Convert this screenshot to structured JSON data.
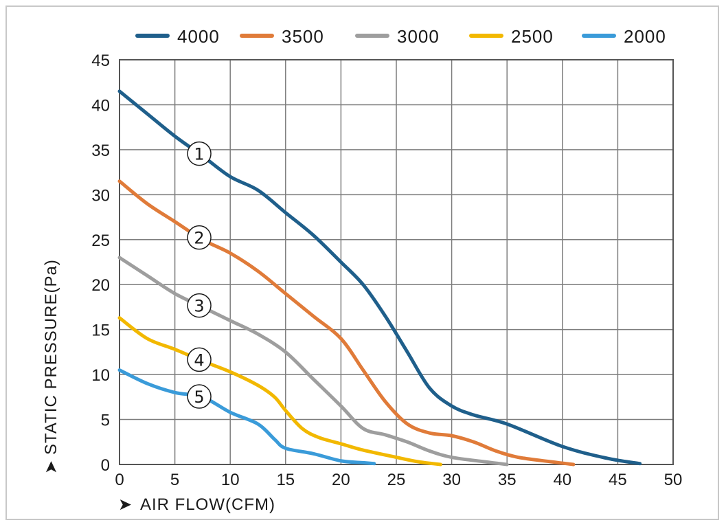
{
  "chart_data": {
    "type": "line",
    "xlabel": "AIR FLOW(CFM)",
    "ylabel": "STATIC PRESSURE(Pa)",
    "xlim": [
      0,
      50
    ],
    "ylim": [
      0,
      45
    ],
    "x_ticks": [
      "0",
      "5",
      "10",
      "15",
      "20",
      "25",
      "30",
      "35",
      "40",
      "45",
      "50"
    ],
    "y_ticks": [
      "0",
      "5",
      "10",
      "15",
      "20",
      "25",
      "30",
      "35",
      "40",
      "45"
    ],
    "grid": true,
    "legend_position": "top",
    "series": [
      {
        "name": "4000",
        "marker": "①",
        "color": "#1f5f8b",
        "points": [
          [
            0,
            41.5
          ],
          [
            2.5,
            39
          ],
          [
            5,
            36.5
          ],
          [
            7.5,
            34.3
          ],
          [
            10,
            32
          ],
          [
            12.5,
            30.5
          ],
          [
            15,
            28
          ],
          [
            17.5,
            25.5
          ],
          [
            20,
            22.5
          ],
          [
            22,
            20
          ],
          [
            24,
            16.5
          ],
          [
            26,
            12.5
          ],
          [
            28,
            8.5
          ],
          [
            30,
            6.5
          ],
          [
            32,
            5.5
          ],
          [
            35,
            4.5
          ],
          [
            40,
            2
          ],
          [
            44,
            0.7
          ],
          [
            47,
            0.1
          ]
        ]
      },
      {
        "name": "3500",
        "marker": "②",
        "color": "#e07b39",
        "points": [
          [
            0,
            31.5
          ],
          [
            2.5,
            29
          ],
          [
            5,
            27
          ],
          [
            7.5,
            25
          ],
          [
            10,
            23.5
          ],
          [
            12.5,
            21.5
          ],
          [
            15,
            19
          ],
          [
            17.5,
            16.5
          ],
          [
            20,
            14
          ],
          [
            22,
            10.5
          ],
          [
            24,
            7
          ],
          [
            26,
            4.5
          ],
          [
            28,
            3.5
          ],
          [
            30,
            3.2
          ],
          [
            32,
            2.5
          ],
          [
            34,
            1.5
          ],
          [
            36,
            0.8
          ],
          [
            39,
            0.3
          ],
          [
            41,
            0
          ]
        ]
      },
      {
        "name": "3000",
        "marker": "③",
        "color": "#9e9e9e",
        "points": [
          [
            0,
            23
          ],
          [
            2.5,
            21
          ],
          [
            5,
            19
          ],
          [
            7.5,
            17.5
          ],
          [
            10,
            16
          ],
          [
            12.5,
            14.5
          ],
          [
            15,
            12.5
          ],
          [
            17.5,
            9.5
          ],
          [
            20,
            6.5
          ],
          [
            22,
            4
          ],
          [
            24,
            3.3
          ],
          [
            26,
            2.5
          ],
          [
            28,
            1.5
          ],
          [
            30,
            0.8
          ],
          [
            33,
            0.3
          ],
          [
            35,
            0
          ]
        ]
      },
      {
        "name": "2500",
        "marker": "④",
        "color": "#f2b800",
        "points": [
          [
            0,
            16.3
          ],
          [
            2.5,
            14
          ],
          [
            5,
            12.8
          ],
          [
            7.5,
            11.5
          ],
          [
            10,
            10.3
          ],
          [
            12.5,
            8.8
          ],
          [
            14,
            7.5
          ],
          [
            15,
            6
          ],
          [
            16.5,
            4
          ],
          [
            18,
            3
          ],
          [
            20,
            2.3
          ],
          [
            22,
            1.6
          ],
          [
            25,
            0.8
          ],
          [
            27,
            0.3
          ],
          [
            29,
            0
          ]
        ]
      },
      {
        "name": "2000",
        "marker": "⑤",
        "color": "#3a9bd9",
        "points": [
          [
            0,
            10.5
          ],
          [
            2.5,
            9
          ],
          [
            5,
            8
          ],
          [
            7.5,
            7.5
          ],
          [
            10,
            5.8
          ],
          [
            12.5,
            4.5
          ],
          [
            14,
            2.8
          ],
          [
            15,
            1.8
          ],
          [
            17.5,
            1.2
          ],
          [
            20,
            0.4
          ],
          [
            22,
            0.2
          ],
          [
            23,
            0.1
          ]
        ]
      }
    ],
    "annotations": [
      "①",
      "②",
      "③",
      "④",
      "⑤"
    ]
  }
}
